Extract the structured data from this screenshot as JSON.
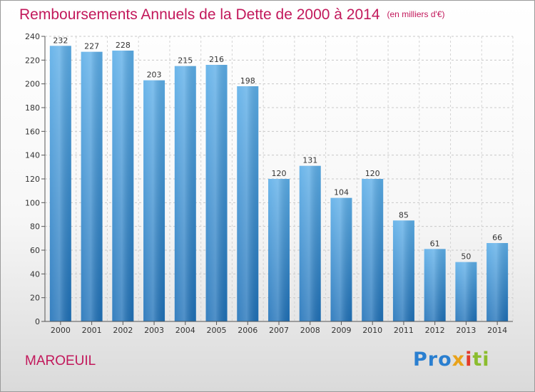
{
  "chart_data": {
    "type": "bar",
    "title": "Remboursements Annuels de la Dette de 2000 à 2014",
    "subtitle": "(en milliers d'€)",
    "categories": [
      "2000",
      "2001",
      "2002",
      "2003",
      "2004",
      "2005",
      "2006",
      "2007",
      "2008",
      "2009",
      "2010",
      "2011",
      "2012",
      "2013",
      "2014"
    ],
    "values": [
      232,
      227,
      228,
      203,
      215,
      216,
      198,
      120,
      131,
      104,
      120,
      85,
      61,
      50,
      66
    ],
    "yticks": [
      0,
      20,
      40,
      60,
      80,
      100,
      120,
      140,
      160,
      180,
      200,
      220,
      240
    ],
    "ylim": [
      0,
      240
    ],
    "grid": true,
    "xlabel": "",
    "ylabel": ""
  },
  "location": "MAROEUIL",
  "logo": {
    "p1": "Pro",
    "p2": "x",
    "p3": "i",
    "p4": "ti"
  },
  "colors": {
    "bar_light": "#5caee8",
    "bar_dark": "#1f71b8",
    "accent": "#c2185b"
  }
}
